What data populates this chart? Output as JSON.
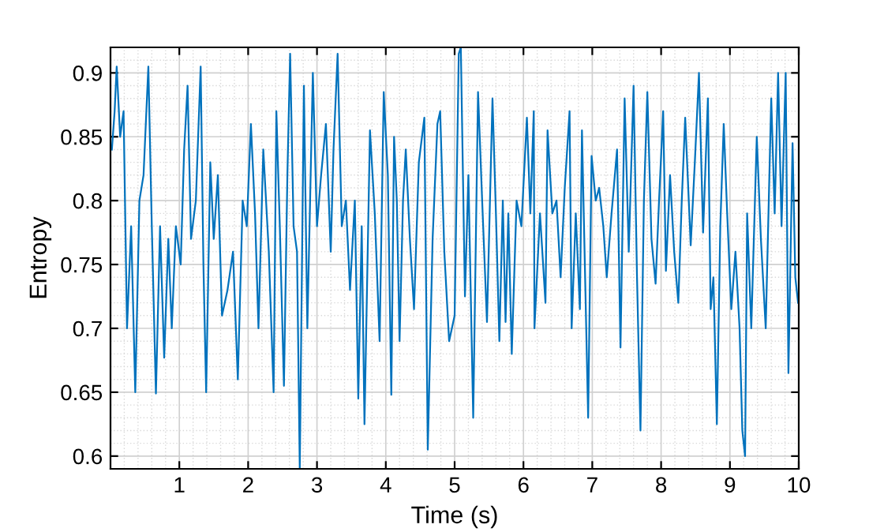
{
  "chart_data": {
    "type": "line",
    "xlabel": "Time (s)",
    "ylabel": "Entropy",
    "xlim": [
      0,
      10
    ],
    "ylim": [
      0.59,
      0.92
    ],
    "xticks": [
      1,
      2,
      3,
      4,
      5,
      6,
      7,
      8,
      9,
      10
    ],
    "yticks": [
      0.6,
      0.65,
      0.7,
      0.75,
      0.8,
      0.85,
      0.9
    ],
    "grid": true,
    "marker": "none",
    "line_style": "solid",
    "series": [
      {
        "color": "#0072bd",
        "x": [
          0.02,
          0.06,
          0.09,
          0.14,
          0.19,
          0.24,
          0.3,
          0.36,
          0.42,
          0.48,
          0.55,
          0.6,
          0.66,
          0.72,
          0.78,
          0.84,
          0.89,
          0.95,
          1.02,
          1.07,
          1.12,
          1.17,
          1.24,
          1.31,
          1.35,
          1.39,
          1.45,
          1.5,
          1.56,
          1.62,
          1.7,
          1.78,
          1.85,
          1.92,
          1.98,
          2.04,
          2.1,
          2.15,
          2.22,
          2.3,
          2.37,
          2.41,
          2.46,
          2.52,
          2.57,
          2.61,
          2.66,
          2.71,
          2.75,
          2.81,
          2.86,
          2.94,
          3.0,
          3.06,
          3.13,
          3.2,
          3.24,
          3.3,
          3.36,
          3.42,
          3.48,
          3.55,
          3.6,
          3.65,
          3.69,
          3.77,
          3.84,
          3.91,
          3.97,
          4.03,
          4.08,
          4.12,
          4.16,
          4.2,
          4.25,
          4.29,
          4.35,
          4.41,
          4.48,
          4.56,
          4.61,
          4.68,
          4.75,
          4.79,
          4.85,
          4.92,
          5.0,
          5.06,
          5.09,
          5.15,
          5.2,
          5.27,
          5.34,
          5.4,
          5.47,
          5.55,
          5.6,
          5.65,
          5.7,
          5.74,
          5.78,
          5.83,
          5.9,
          5.97,
          6.05,
          6.1,
          6.15,
          6.16,
          6.24,
          6.32,
          6.35,
          6.42,
          6.48,
          6.54,
          6.6,
          6.67,
          6.7,
          6.76,
          6.82,
          6.85,
          6.94,
          6.99,
          7.05,
          7.1,
          7.16,
          7.21,
          7.28,
          7.36,
          7.41,
          7.47,
          7.53,
          7.6,
          7.65,
          7.7,
          7.75,
          7.8,
          7.86,
          7.92,
          7.97,
          8.03,
          8.07,
          8.13,
          8.19,
          8.25,
          8.3,
          8.35,
          8.43,
          8.49,
          8.55,
          8.61,
          8.68,
          8.72,
          8.76,
          8.81,
          8.86,
          8.91,
          8.96,
          9.02,
          9.08,
          9.14,
          9.18,
          9.22,
          9.25,
          9.31,
          9.39,
          9.45,
          9.52,
          9.6,
          9.65,
          9.7,
          9.75,
          9.81,
          9.85,
          9.91,
          9.95,
          9.99
        ],
        "values": [
          0.84,
          0.87,
          0.905,
          0.85,
          0.87,
          0.7,
          0.78,
          0.65,
          0.8,
          0.82,
          0.905,
          0.78,
          0.649,
          0.78,
          0.677,
          0.77,
          0.7,
          0.78,
          0.75,
          0.84,
          0.89,
          0.77,
          0.8,
          0.905,
          0.75,
          0.65,
          0.83,
          0.77,
          0.82,
          0.71,
          0.73,
          0.76,
          0.66,
          0.8,
          0.78,
          0.86,
          0.79,
          0.7,
          0.84,
          0.76,
          0.65,
          0.87,
          0.78,
          0.655,
          0.82,
          0.915,
          0.78,
          0.76,
          0.59,
          0.89,
          0.7,
          0.9,
          0.78,
          0.82,
          0.86,
          0.76,
          0.84,
          0.915,
          0.78,
          0.8,
          0.73,
          0.8,
          0.645,
          0.78,
          0.625,
          0.855,
          0.79,
          0.69,
          0.885,
          0.82,
          0.648,
          0.85,
          0.8,
          0.69,
          0.8,
          0.84,
          0.77,
          0.715,
          0.83,
          0.865,
          0.605,
          0.77,
          0.86,
          0.87,
          0.76,
          0.69,
          0.71,
          0.915,
          0.92,
          0.725,
          0.82,
          0.63,
          0.885,
          0.8,
          0.705,
          0.88,
          0.79,
          0.69,
          0.8,
          0.705,
          0.79,
          0.68,
          0.8,
          0.78,
          0.865,
          0.79,
          0.87,
          0.7,
          0.79,
          0.72,
          0.855,
          0.79,
          0.8,
          0.74,
          0.81,
          0.87,
          0.7,
          0.79,
          0.715,
          0.855,
          0.63,
          0.835,
          0.8,
          0.81,
          0.78,
          0.74,
          0.79,
          0.84,
          0.685,
          0.88,
          0.76,
          0.89,
          0.74,
          0.62,
          0.8,
          0.885,
          0.77,
          0.735,
          0.8,
          0.87,
          0.745,
          0.82,
          0.76,
          0.72,
          0.8,
          0.865,
          0.765,
          0.83,
          0.9,
          0.775,
          0.88,
          0.715,
          0.74,
          0.625,
          0.78,
          0.86,
          0.79,
          0.715,
          0.76,
          0.7,
          0.62,
          0.6,
          0.79,
          0.7,
          0.85,
          0.77,
          0.7,
          0.88,
          0.79,
          0.9,
          0.78,
          0.9,
          0.665,
          0.845,
          0.74,
          0.72
        ]
      }
    ]
  }
}
